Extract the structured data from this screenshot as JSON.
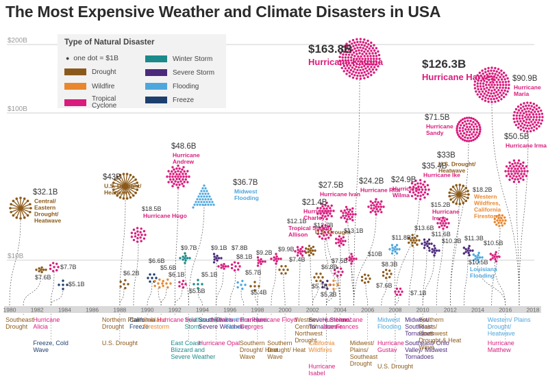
{
  "title": "The Most Expensive Weather and Climate Disasters in USA",
  "legend": {
    "title": "Type of Natural Disaster",
    "dot_note": "one dot = $1B",
    "items": [
      {
        "label": "Drought",
        "color": "#8B5A1A"
      },
      {
        "label": "Winter Storm",
        "color": "#1a8a8a"
      },
      {
        "label": "Wildfire",
        "color": "#e8872e"
      },
      {
        "label": "Severe Storm",
        "color": "#4b2a7b"
      },
      {
        "label": "Tropical Cyclone",
        "color": "#d81b7c"
      },
      {
        "label": "Flooding",
        "color": "#4ea7dc"
      },
      {
        "label": "Freeze",
        "color": "#1d3f6e"
      }
    ]
  },
  "chart_data": {
    "type": "scatter",
    "title": "The Most Expensive Weather and Climate Disasters in USA",
    "x_ticks": [
      "1980",
      "1982",
      "1984",
      "1986",
      "1988",
      "1990",
      "1992",
      "1994",
      "1996",
      "1998",
      "2000",
      "2002",
      "2004",
      "2006",
      "2008",
      "2010",
      "2012",
      "2014",
      "2016",
      "2018"
    ],
    "y_ticks": [
      "$10B",
      "$100B",
      "$200B"
    ],
    "xlim": [
      1980,
      2018
    ],
    "disasters": [
      {
        "year": 1980,
        "value": 32.1,
        "value_label": "$32.1B",
        "name": "Central/ Eastern Drought/ Heatwave",
        "type": "Drought",
        "bottom": "",
        "ux": 30,
        "uy": 304,
        "r": 15,
        "lx": 48,
        "ly": 284
      },
      {
        "year": 1981,
        "value": 7.6,
        "value_label": "$7.6B",
        "name": "",
        "type": "Drought",
        "bottom": "Southeast Drought",
        "ux": 60,
        "uy": 394,
        "r": 7,
        "lx": 51,
        "ly": 408
      },
      {
        "year": 1983,
        "value": 7.7,
        "value_label": "$7.7B",
        "name": "",
        "type": "Tropical Cyclone",
        "bottom": "Hurricane Alicia",
        "ux": 79,
        "uy": 390,
        "r": 6,
        "lx": 88,
        "ly": 393
      },
      {
        "year": 1983,
        "value": 5.1,
        "value_label": "$5.1B",
        "name": "",
        "type": "Freeze",
        "bottom": "Freeze, Cold Wave",
        "ux": 92,
        "uy": 416,
        "r": 6,
        "lx": 100,
        "ly": 418
      },
      {
        "year": 1988,
        "value": 43.0,
        "value_label": "$43B",
        "name": "U.S. Drought/ Heatwave",
        "type": "Drought",
        "bottom": "Northern Plains Drought",
        "ux": 183,
        "uy": 272,
        "r": 18,
        "lx": 150,
        "ly": 262
      },
      {
        "year": 1988,
        "value": 6.2,
        "value_label": "$6.2B",
        "name": "",
        "type": "Drought",
        "bottom": "U.S. Drought",
        "ux": 181,
        "uy": 415,
        "r": 6,
        "lx": 180,
        "ly": 402
      },
      {
        "year": 1989,
        "value": 18.5,
        "value_label": "$18.5B",
        "name": "Hurricane Hugo",
        "type": "Tropical Cyclone",
        "bottom": "",
        "ux": 202,
        "uy": 343,
        "r": 10,
        "lx": 207,
        "ly": 308
      },
      {
        "year": 1990,
        "value": 6.6,
        "value_label": "$6.6B",
        "name": "",
        "type": "Freeze",
        "bottom": "California Freeze",
        "ux": 222,
        "uy": 406,
        "r": 6,
        "lx": 217,
        "ly": 384
      },
      {
        "year": 1991,
        "value": 5.6,
        "value_label": "$5.6B",
        "name": "",
        "type": "Wildfire",
        "bottom": "Oakland Firestorm",
        "ux": 231,
        "uy": 414,
        "r": 6,
        "lx": 234,
        "ly": 394
      },
      {
        "year": 1991,
        "value": 6.1,
        "value_label": "$6.1B",
        "name": "",
        "type": "Wildfire",
        "bottom": "",
        "ux": 243,
        "uy": 414,
        "r": 6,
        "lx": 246,
        "ly": 404
      },
      {
        "year": 1992,
        "value": 48.6,
        "value_label": "$48.6B",
        "name": "Hurricane Andrew",
        "type": "Tropical Cyclone",
        "bottom": "Hurricane Iniki",
        "ux": 260,
        "uy": 258,
        "r": 16,
        "lx": 250,
        "ly": 217
      },
      {
        "year": 1993,
        "value": 9.7,
        "value_label": "$9.7B",
        "name": "",
        "type": "Winter Storm",
        "bottom": "East Coast Blizzard and Severe Weather",
        "ux": 270,
        "uy": 377,
        "r": 7,
        "lx": 264,
        "ly": 365
      },
      {
        "year": 1992,
        "value": 5.6,
        "value_label": "$5.6B",
        "name": "",
        "type": "Tropical Cyclone",
        "bottom": "",
        "ux": 266,
        "uy": 415,
        "r": 5,
        "lx": 276,
        "ly": 428
      },
      {
        "year": 1993,
        "value": 36.7,
        "value_label": "$36.7B",
        "name": "Midwest Flooding",
        "type": "Flooding",
        "bottom": "",
        "ux": 298,
        "uy": 285,
        "r": 14,
        "lx": 340,
        "ly": 270
      },
      {
        "year": 1994,
        "value": 5.1,
        "value_label": "$5.1B",
        "name": "",
        "type": "Winter Storm",
        "bottom": "Southeast Ice Storm",
        "ux": 289,
        "uy": 415,
        "r": 6,
        "lx": 294,
        "ly": 404
      },
      {
        "year": 1995,
        "value": 9.1,
        "value_label": "$9.1B",
        "name": "",
        "type": "Severe Storm",
        "bottom": "South Plains Severe Weather",
        "ux": 316,
        "uy": 377,
        "r": 7,
        "lx": 308,
        "ly": 365
      },
      {
        "year": 1995,
        "value": 7.8,
        "value_label": "$7.8B",
        "name": "",
        "type": "Tropical Cyclone",
        "bottom": "Hurricane Opal",
        "ux": 326,
        "uy": 389,
        "r": 7,
        "lx": 338,
        "ly": 365
      },
      {
        "year": 1996,
        "value": 8.1,
        "value_label": "$8.1B",
        "name": "",
        "type": "Tropical Cyclone",
        "bottom": "Hurricane Fran",
        "ux": 344,
        "uy": 389,
        "r": 6,
        "lx": 345,
        "ly": 378
      },
      {
        "year": 1997,
        "value": 5.7,
        "value_label": "$5.7B",
        "name": "",
        "type": "Flooding",
        "bottom": "Northern Plains Flooding",
        "ux": 352,
        "uy": 416,
        "r": 6,
        "lx": 358,
        "ly": 401
      },
      {
        "year": 1998,
        "value": 9.2,
        "value_label": "$9.2B",
        "name": "",
        "type": "Tropical Cyclone",
        "bottom": "Hurricane Georges",
        "ux": 380,
        "uy": 382,
        "r": 7,
        "lx": 374,
        "ly": 372
      },
      {
        "year": 1998,
        "value": 5.4,
        "value_label": "$5.4B",
        "name": "",
        "type": "Drought",
        "bottom": "Southern Drought/ Heat Wave",
        "ux": 372,
        "uy": 418,
        "r": 6,
        "lx": 366,
        "ly": 430
      },
      {
        "year": 1999,
        "value": 9.9,
        "value_label": "$9.9B",
        "name": "",
        "type": "Tropical Cyclone",
        "bottom": "Hurricane Floyd",
        "ux": 403,
        "uy": 378,
        "r": 7,
        "lx": 406,
        "ly": 367
      },
      {
        "year": 2000,
        "value": 7.4,
        "value_label": "$7.4B",
        "name": "",
        "type": "Drought",
        "bottom": "Southern Drought/ Heat Wave",
        "ux": 414,
        "uy": 394,
        "r": 6,
        "lx": 422,
        "ly": 382
      },
      {
        "year": 2001,
        "value": 12.1,
        "value_label": "$12.1B",
        "name": "Tropical Storm Allison",
        "type": "Tropical Cyclone",
        "bottom": "",
        "ux": 438,
        "uy": 367,
        "r": 7,
        "lx": 419,
        "ly": 326
      },
      {
        "year": 2002,
        "value": 12.7,
        "value_label": "$12.7B",
        "name": "U.S. Drought",
        "type": "Drought",
        "bottom": "Western/ Central/ Northwest Drought",
        "ux": 453,
        "uy": 366,
        "r": 7,
        "lx": 458,
        "ly": 332
      },
      {
        "year": 2002,
        "value": 6.8,
        "value_label": "$6.8B",
        "name": "",
        "type": "Drought",
        "bottom": "",
        "ux": 465,
        "uy": 405,
        "r": 6,
        "lx": 469,
        "ly": 393
      },
      {
        "year": 2003,
        "value": 5.7,
        "value_label": "$5.7B",
        "name": "",
        "type": "Severe Storm",
        "bottom": "Severe Storms/ Tornadoes",
        "ux": 476,
        "uy": 416,
        "r": 6,
        "lx": 455,
        "ly": 421
      },
      {
        "year": 2003,
        "value": 5.3,
        "value_label": "$5.3B",
        "name": "",
        "type": "Wildfire",
        "bottom": "California Wildfires",
        "ux": 487,
        "uy": 416,
        "r": 6,
        "lx": 468,
        "ly": 433
      },
      {
        "year": 2003,
        "value": 7.5,
        "value_label": "$7.5B",
        "name": "",
        "type": "Tropical Cyclone",
        "bottom": "Hurricane Isabel",
        "ux": 494,
        "uy": 397,
        "r": 6,
        "lx": 484,
        "ly": 384
      },
      {
        "year": 2004,
        "value": 21.4,
        "value_label": "$21.4B",
        "name": "Hurricane Charley",
        "type": "Tropical Cyclone",
        "bottom": "",
        "ux": 474,
        "uy": 339,
        "r": 10,
        "lx": 441,
        "ly": 299
      },
      {
        "year": 2004,
        "value": 27.5,
        "value_label": "$27.5B",
        "name": "Hurricane Ivan",
        "type": "Tropical Cyclone",
        "bottom": "",
        "ux": 475,
        "uy": 308,
        "r": 12,
        "lx": 465,
        "ly": 274
      },
      {
        "year": 2004,
        "value": 13.1,
        "value_label": "$13.1B",
        "name": "",
        "type": "Tropical Cyclone",
        "bottom": "Hurricane Jeanne",
        "ux": 497,
        "uy": 352,
        "r": 7,
        "lx": 502,
        "ly": 340
      },
      {
        "year": 2005,
        "value": 24.2,
        "value_label": "$24.2B",
        "name": "Hurricane Rita",
        "type": "Tropical Cyclone",
        "bottom": "",
        "ux": 508,
        "uy": 313,
        "r": 11,
        "lx": 524,
        "ly": 268
      },
      {
        "year": 2005,
        "value": 10.0,
        "value_label": "$10B",
        "name": "",
        "type": "Tropical Cyclone",
        "bottom": "",
        "ux": 513,
        "uy": 378,
        "r": 7,
        "lx": 537,
        "ly": 374
      },
      {
        "year": 2005,
        "value": 163.8,
        "value_label": "$163.8B",
        "name": "Hurricane Katrina",
        "type": "Tropical Cyclone",
        "bottom": "Hurricane Frances",
        "ux": 525,
        "uy": 86,
        "r": 29,
        "lx": 450,
        "ly": 77
      },
      {
        "year": 2005,
        "value": 24.9,
        "value_label": "$24.9B",
        "name": "Hurricane Wilma",
        "type": "Tropical Cyclone",
        "bottom": "",
        "ux": 549,
        "uy": 302,
        "r": 11,
        "lx": 571,
        "ly": 266
      },
      {
        "year": 2006,
        "value": 7.6,
        "value_label": "$7.6B",
        "name": "",
        "type": "Drought",
        "bottom": "Midwest/ Plains/ Southeast Drought",
        "ux": 534,
        "uy": 407,
        "r": 6,
        "lx": 549,
        "ly": 420
      },
      {
        "year": 2007,
        "value": 8.3,
        "value_label": "$8.3B",
        "name": "",
        "type": "Drought",
        "bottom": "",
        "ux": 565,
        "uy": 400,
        "r": 6,
        "lx": 557,
        "ly": 389
      },
      {
        "year": 2008,
        "value": 11.8,
        "value_label": "$11.8B",
        "name": "",
        "type": "Flooding",
        "bottom": "Midwest Flooding",
        "ux": 576,
        "uy": 364,
        "r": 7,
        "lx": 572,
        "ly": 350
      },
      {
        "year": 2008,
        "value": 35.4,
        "value_label": "$35.4B",
        "name": "Hurricane Ike",
        "type": "Tropical Cyclone",
        "bottom": "",
        "ux": 612,
        "uy": 277,
        "r": 14,
        "lx": 616,
        "ly": 246
      },
      {
        "year": 2008,
        "value": 7.1,
        "value_label": "$7.1B",
        "name": "",
        "type": "Tropical Cyclone",
        "bottom": "Hurricane Gustav",
        "ux": 582,
        "uy": 426,
        "r": 5,
        "lx": 599,
        "ly": 431
      },
      {
        "year": 2008,
        "value": 0,
        "value_label": "",
        "name": "",
        "type": "Drought",
        "bottom": "U.S. Drought",
        "ux": 0,
        "uy": 0,
        "r": 0,
        "lx": 0,
        "ly": 0
      },
      {
        "year": 2009,
        "value": 13.6,
        "value_label": "$13.6B",
        "name": "",
        "type": "Drought",
        "bottom": "",
        "ux": 604,
        "uy": 351,
        "r": 8,
        "lx": 605,
        "ly": 336
      },
      {
        "year": 2010,
        "value": 11.6,
        "value_label": "$11.6B",
        "name": "",
        "type": "Severe Storm",
        "bottom": "Midwest/ Southeast Tornadoes",
        "ux": 623,
        "uy": 356,
        "r": 7,
        "lx": 630,
        "ly": 345
      },
      {
        "year": 2010,
        "value": 10.3,
        "value_label": "$10.3B",
        "name": "",
        "type": "Severe Storm",
        "bottom": "Southeast/ Ohio Valley/ Midwest Tornadoes",
        "ux": 634,
        "uy": 366,
        "r": 7,
        "lx": 645,
        "ly": 355
      },
      {
        "year": 2011,
        "value": 15.2,
        "value_label": "$15.2B",
        "name": "Hurricane Irene",
        "type": "Tropical Cyclone",
        "bottom": "",
        "ux": 647,
        "uy": 326,
        "r": 8,
        "lx": 629,
        "ly": 302
      },
      {
        "year": 2011,
        "value": 0,
        "value_label": "",
        "name": "",
        "type": "Drought",
        "bottom": "Southern Plains/ Southwest Drought & Heat Wave",
        "ux": 0,
        "uy": 0,
        "r": 0,
        "lx": 0,
        "ly": 0
      },
      {
        "year": 2012,
        "value": 71.5,
        "value_label": "$71.5B",
        "name": "Hurricane Sandy",
        "type": "Tropical Cyclone",
        "bottom": "",
        "ux": 684,
        "uy": 189,
        "r": 17,
        "lx": 620,
        "ly": 175
      },
      {
        "year": 2012,
        "value": 33.0,
        "value_label": "$33B",
        "name": "U.S. Drought/ Heatwave",
        "type": "Drought",
        "bottom": "",
        "ux": 670,
        "uy": 284,
        "r": 14,
        "lx": 638,
        "ly": 230
      },
      {
        "year": 2013,
        "value": 11.3,
        "value_label": "$11.3B",
        "name": "",
        "type": "Severe Storm",
        "bottom": "",
        "ux": 683,
        "uy": 366,
        "r": 7,
        "lx": 678,
        "ly": 351
      },
      {
        "year": 2015,
        "value": 18.2,
        "value_label": "$18.2B",
        "name": "Western Wildfires, California Firestorm",
        "type": "Wildfire",
        "bottom": "",
        "ux": 730,
        "uy": 322,
        "r": 8,
        "lx": 690,
        "ly": 280
      },
      {
        "year": 2016,
        "value": 10.5,
        "value_label": "$10.5B",
        "name": "Louisiana Flooding",
        "type": "Flooding",
        "bottom": "Western/ Plains Drought/ Heatwave",
        "ux": 697,
        "uy": 376,
        "r": 7,
        "lx": 684,
        "ly": 386
      },
      {
        "year": 2016,
        "value": 10.5,
        "value_label": "$10.5B",
        "name": "",
        "type": "Tropical Cyclone",
        "bottom": "Hurricane Matthew",
        "ux": 722,
        "uy": 375,
        "r": 7,
        "lx": 706,
        "ly": 358
      },
      {
        "year": 2017,
        "value": 126.3,
        "value_label": "$126.3B",
        "name": "Hurricane Harvey",
        "type": "Tropical Cyclone",
        "bottom": "",
        "ux": 718,
        "uy": 124,
        "r": 25,
        "lx": 616,
        "ly": 99
      },
      {
        "year": 2017,
        "value": 90.9,
        "value_label": "$90.9B",
        "name": "Hurricane Maria",
        "type": "Tropical Cyclone",
        "bottom": "",
        "ux": 771,
        "uy": 171,
        "r": 21,
        "lx": 748,
        "ly": 118
      },
      {
        "year": 2017,
        "value": 50.5,
        "value_label": "$50.5B",
        "name": "Hurricane Irma",
        "type": "Tropical Cyclone",
        "bottom": "",
        "ux": 754,
        "uy": 250,
        "r": 16,
        "lx": 736,
        "ly": 203
      }
    ]
  }
}
